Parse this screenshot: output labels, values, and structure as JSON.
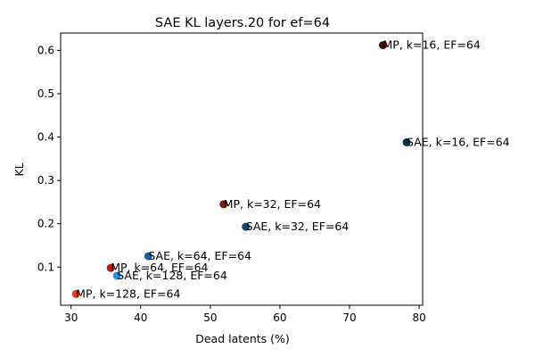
{
  "chart_data": {
    "type": "scatter",
    "title": "SAE KL layers.20 for ef=64",
    "xlabel": "Dead latents (%)",
    "ylabel": "KL",
    "xlim": [
      28.5,
      80.5
    ],
    "ylim": [
      0.012,
      0.64
    ],
    "xticks": [
      30,
      40,
      50,
      60,
      70,
      80
    ],
    "yticks": [
      0.1,
      0.2,
      0.3,
      0.4,
      0.5,
      0.6
    ],
    "ytick_labels": [
      "0.1",
      "0.2",
      "0.3",
      "0.4",
      "0.5",
      "0.6"
    ],
    "grid": false,
    "points": [
      {
        "label": "MP, k=16, EF=64",
        "x": 74.8,
        "y": 0.612,
        "color": "#4a0d05"
      },
      {
        "label": "SAE, k=16, EF=64",
        "x": 78.2,
        "y": 0.388,
        "color": "#0a3042"
      },
      {
        "label": "MP, k=32, EF=64",
        "x": 51.9,
        "y": 0.245,
        "color": "#8b1a04"
      },
      {
        "label": "SAE, k=32, EF=64",
        "x": 55.1,
        "y": 0.193,
        "color": "#0e4a6a"
      },
      {
        "label": "SAE, k=64, EF=64",
        "x": 41.1,
        "y": 0.125,
        "color": "#1565a8"
      },
      {
        "label": "MP, k=64, EF=64",
        "x": 35.7,
        "y": 0.098,
        "color": "#c21a04"
      },
      {
        "label": "SAE, k=128, EF=64",
        "x": 36.6,
        "y": 0.08,
        "color": "#1e95e0"
      },
      {
        "label": "MP, k=128, EF=64",
        "x": 30.7,
        "y": 0.038,
        "color": "#f03a0a"
      }
    ]
  }
}
